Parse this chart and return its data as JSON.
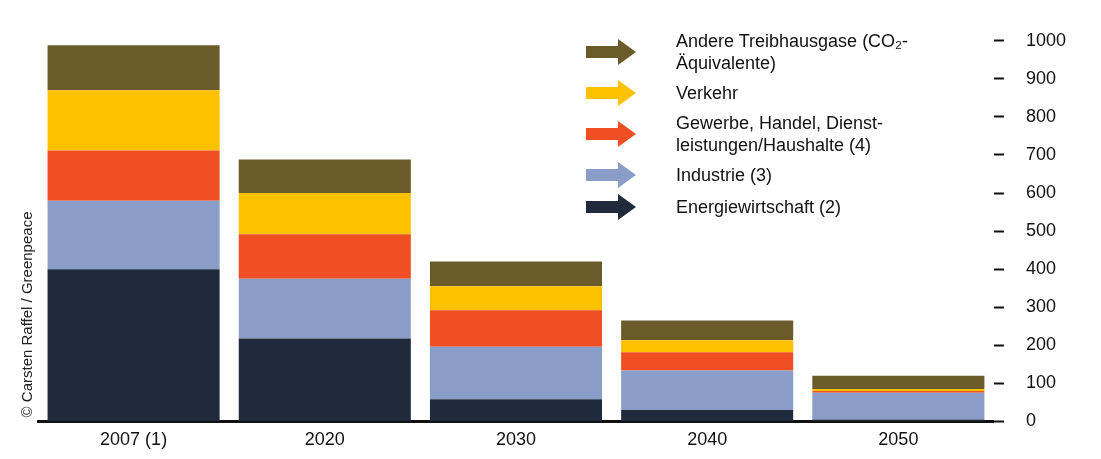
{
  "chart_data": {
    "type": "bar",
    "stacked": true,
    "categories": [
      "2007 (1)",
      "2020",
      "2030",
      "2040",
      "2050"
    ],
    "series": [
      {
        "name": "Energiewirtschaft (2)",
        "color": "#1f2a3c",
        "values": [
          400,
          218,
          58,
          30,
          5
        ]
      },
      {
        "name": "Industrie (3)",
        "color": "#8a9dc8",
        "values": [
          180,
          157,
          138,
          104,
          70
        ]
      },
      {
        "name": "Gewerbe, Handel, Dienst-leistungen/Haushalte (4)",
        "color": "#f04e23",
        "values": [
          132,
          117,
          96,
          48,
          5
        ]
      },
      {
        "name": "Verkehr",
        "color": "#fcc200",
        "values": [
          158,
          108,
          63,
          31,
          5
        ]
      },
      {
        "name": "Andere Treibhausgase (CO₂-Äquivalente)",
        "color": "#6b5a2a",
        "values": [
          118,
          88,
          65,
          52,
          35
        ]
      }
    ],
    "ylim": [
      0,
      1000
    ],
    "yticks": [
      0,
      100,
      200,
      300,
      400,
      500,
      600,
      700,
      800,
      900,
      1000
    ],
    "grid": false,
    "legend": "top right",
    "annotations": [
      "© Carsten Raffel / Greenpeace"
    ]
  }
}
